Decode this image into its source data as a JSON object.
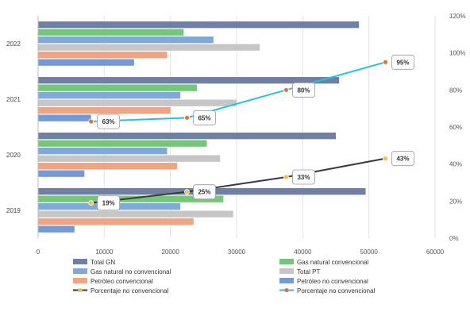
{
  "chart_data": {
    "type": "bar",
    "orientation": "horizontal",
    "categories": [
      "2019",
      "2020",
      "2021",
      "2022"
    ],
    "xlim": [
      0,
      60000
    ],
    "x_ticks": [
      "0",
      "10000",
      "20000",
      "30000",
      "40000",
      "50000",
      "60000"
    ],
    "secondary_ylim": [
      0,
      1.2
    ],
    "y2_ticks": [
      "0%",
      "20%",
      "40%",
      "60%",
      "80%",
      "100%",
      "120%"
    ],
    "grid": true,
    "legend_position": "bottom",
    "bar_series": [
      {
        "name": "Total GN",
        "color": "#6f7fa5",
        "values": [
          49500,
          45000,
          45500,
          48500
        ]
      },
      {
        "name": "Gas natural convencional",
        "color": "#74c776",
        "values": [
          28000,
          25500,
          24000,
          22000
        ]
      },
      {
        "name": "Gas natural no convencional",
        "color": "#7fa9d9",
        "values": [
          21500,
          19500,
          21500,
          26500
        ]
      },
      {
        "name": "Total PT",
        "color": "#c6c6c6",
        "values": [
          29500,
          27500,
          30000,
          33500
        ]
      },
      {
        "name": "Petróleo convencional",
        "color": "#f2a482",
        "values": [
          23500,
          21000,
          20000,
          19500
        ]
      },
      {
        "name": "Petróleo no convencional",
        "color": "#7399d6",
        "values": [
          5500,
          7000,
          8000,
          14500
        ]
      }
    ],
    "line_series": [
      {
        "name": "Porcentaje no convencional",
        "color": "#3a3a3a",
        "marker_color": "#f5c23d",
        "x_labels": [
          8000,
          22500,
          37500,
          52500
        ],
        "values": [
          0.19,
          0.25,
          0.33,
          0.43
        ],
        "data_labels": [
          "19%",
          "25%",
          "33%",
          "43%"
        ]
      },
      {
        "name": "Porcentaje no convencional",
        "color": "#26c2e3",
        "marker_color": "#e0733b",
        "x_labels": [
          8000,
          22500,
          37500,
          52500
        ],
        "values": [
          0.63,
          0.65,
          0.8,
          0.95
        ],
        "data_labels": [
          "63%",
          "65%",
          "80%",
          "95%"
        ]
      }
    ]
  }
}
